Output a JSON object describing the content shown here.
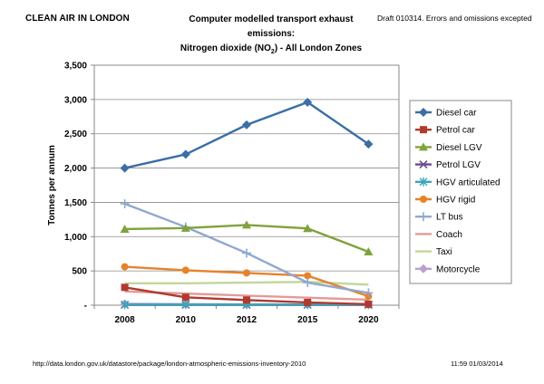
{
  "header": {
    "left_title": "CLEAN AIR IN LONDON",
    "title_line1": "Computer modelled transport exhaust emissions:",
    "title_line2_pre": "Nitrogen dioxide (NO",
    "title_line2_sub": "2",
    "title_line2_post": ") - All London Zones",
    "draft_note": "Draft 010314.  Errors and omissions excepted"
  },
  "footer": {
    "source_url": "http://data.london.gov.uk/datastore/package/london-atmospheric-emissions-inventory-2010",
    "timestamp": "11:59  01/03/2014"
  },
  "chart_data": {
    "type": "line",
    "title": "Computer modelled transport exhaust emissions: Nitrogen dioxide (NO2) - All London Zones",
    "xlabel": "",
    "ylabel": "Tonnes per annum",
    "categories": [
      "2008",
      "2010",
      "2012",
      "2015",
      "2020"
    ],
    "ylim": [
      0,
      3500
    ],
    "yticks": [
      0,
      500,
      1000,
      1500,
      2000,
      2500,
      3000,
      3500
    ],
    "ytick_labels": [
      "-",
      "500",
      "1,000",
      "1,500",
      "2,000",
      "2,500",
      "3,000",
      "3,500"
    ],
    "grid": true,
    "legend_position": "right",
    "series": [
      {
        "name": "Diesel car",
        "color": "#3A6EA5",
        "marker": "diamond",
        "values": [
          2000,
          2200,
          2630,
          2960,
          2350
        ]
      },
      {
        "name": "Petrol car",
        "color": "#B03A2E",
        "marker": "square",
        "values": [
          260,
          115,
          75,
          40,
          15
        ]
      },
      {
        "name": "Diesel LGV",
        "color": "#7FA33B",
        "marker": "triangle",
        "values": [
          1110,
          1125,
          1170,
          1120,
          780
        ]
      },
      {
        "name": "Petrol LGV",
        "color": "#6A4A8C",
        "marker": "x",
        "values": [
          5,
          5,
          5,
          5,
          5
        ]
      },
      {
        "name": "HGV articulated",
        "color": "#3AA6B9",
        "marker": "star",
        "values": [
          10,
          10,
          10,
          10,
          10
        ]
      },
      {
        "name": "HGV rigid",
        "color": "#E8822A",
        "marker": "circle",
        "values": [
          560,
          510,
          470,
          430,
          130
        ]
      },
      {
        "name": "LT bus",
        "color": "#8FA8D0",
        "marker": "plus",
        "values": [
          1480,
          1140,
          760,
          330,
          180
        ]
      },
      {
        "name": "Coach",
        "color": "#E39A9A",
        "marker": "none",
        "values": [
          200,
          170,
          140,
          110,
          80
        ]
      },
      {
        "name": "Taxi",
        "color": "#C3D69B",
        "marker": "none",
        "values": [
          320,
          320,
          330,
          340,
          300
        ]
      },
      {
        "name": "Motorcycle",
        "color": "#B9A0CF",
        "marker": "diamond",
        "values": [
          20,
          15,
          12,
          10,
          8
        ]
      }
    ]
  }
}
